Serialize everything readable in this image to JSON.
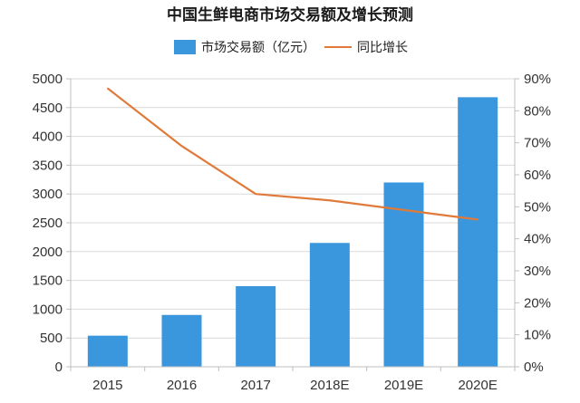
{
  "chart_data": {
    "type": "bar",
    "title": "中国生鲜电商市场交易额及增长预测",
    "categories": [
      "2015",
      "2016",
      "2017",
      "2018E",
      "2019E",
      "2020E"
    ],
    "series": [
      {
        "name": "市场交易额（亿元）",
        "type": "bar",
        "axis": "left",
        "color": "#3a97dd",
        "values": [
          540,
          900,
          1400,
          2150,
          3200,
          4680
        ]
      },
      {
        "name": "同比增长",
        "type": "line",
        "axis": "right",
        "color": "#e07a3a",
        "values": [
          87,
          69,
          54,
          52,
          49,
          46
        ]
      }
    ],
    "ylim": [
      0,
      5000
    ],
    "yticks": [
      "0",
      "500",
      "1000",
      "1500",
      "2000",
      "2500",
      "3000",
      "3500",
      "4000",
      "4500",
      "5000"
    ],
    "y2lim": [
      0,
      90
    ],
    "y2ticks": [
      "0%",
      "10%",
      "20%",
      "30%",
      "40%",
      "50%",
      "60%",
      "70%",
      "80%",
      "90%"
    ],
    "grid": true,
    "legend": "top-center"
  }
}
